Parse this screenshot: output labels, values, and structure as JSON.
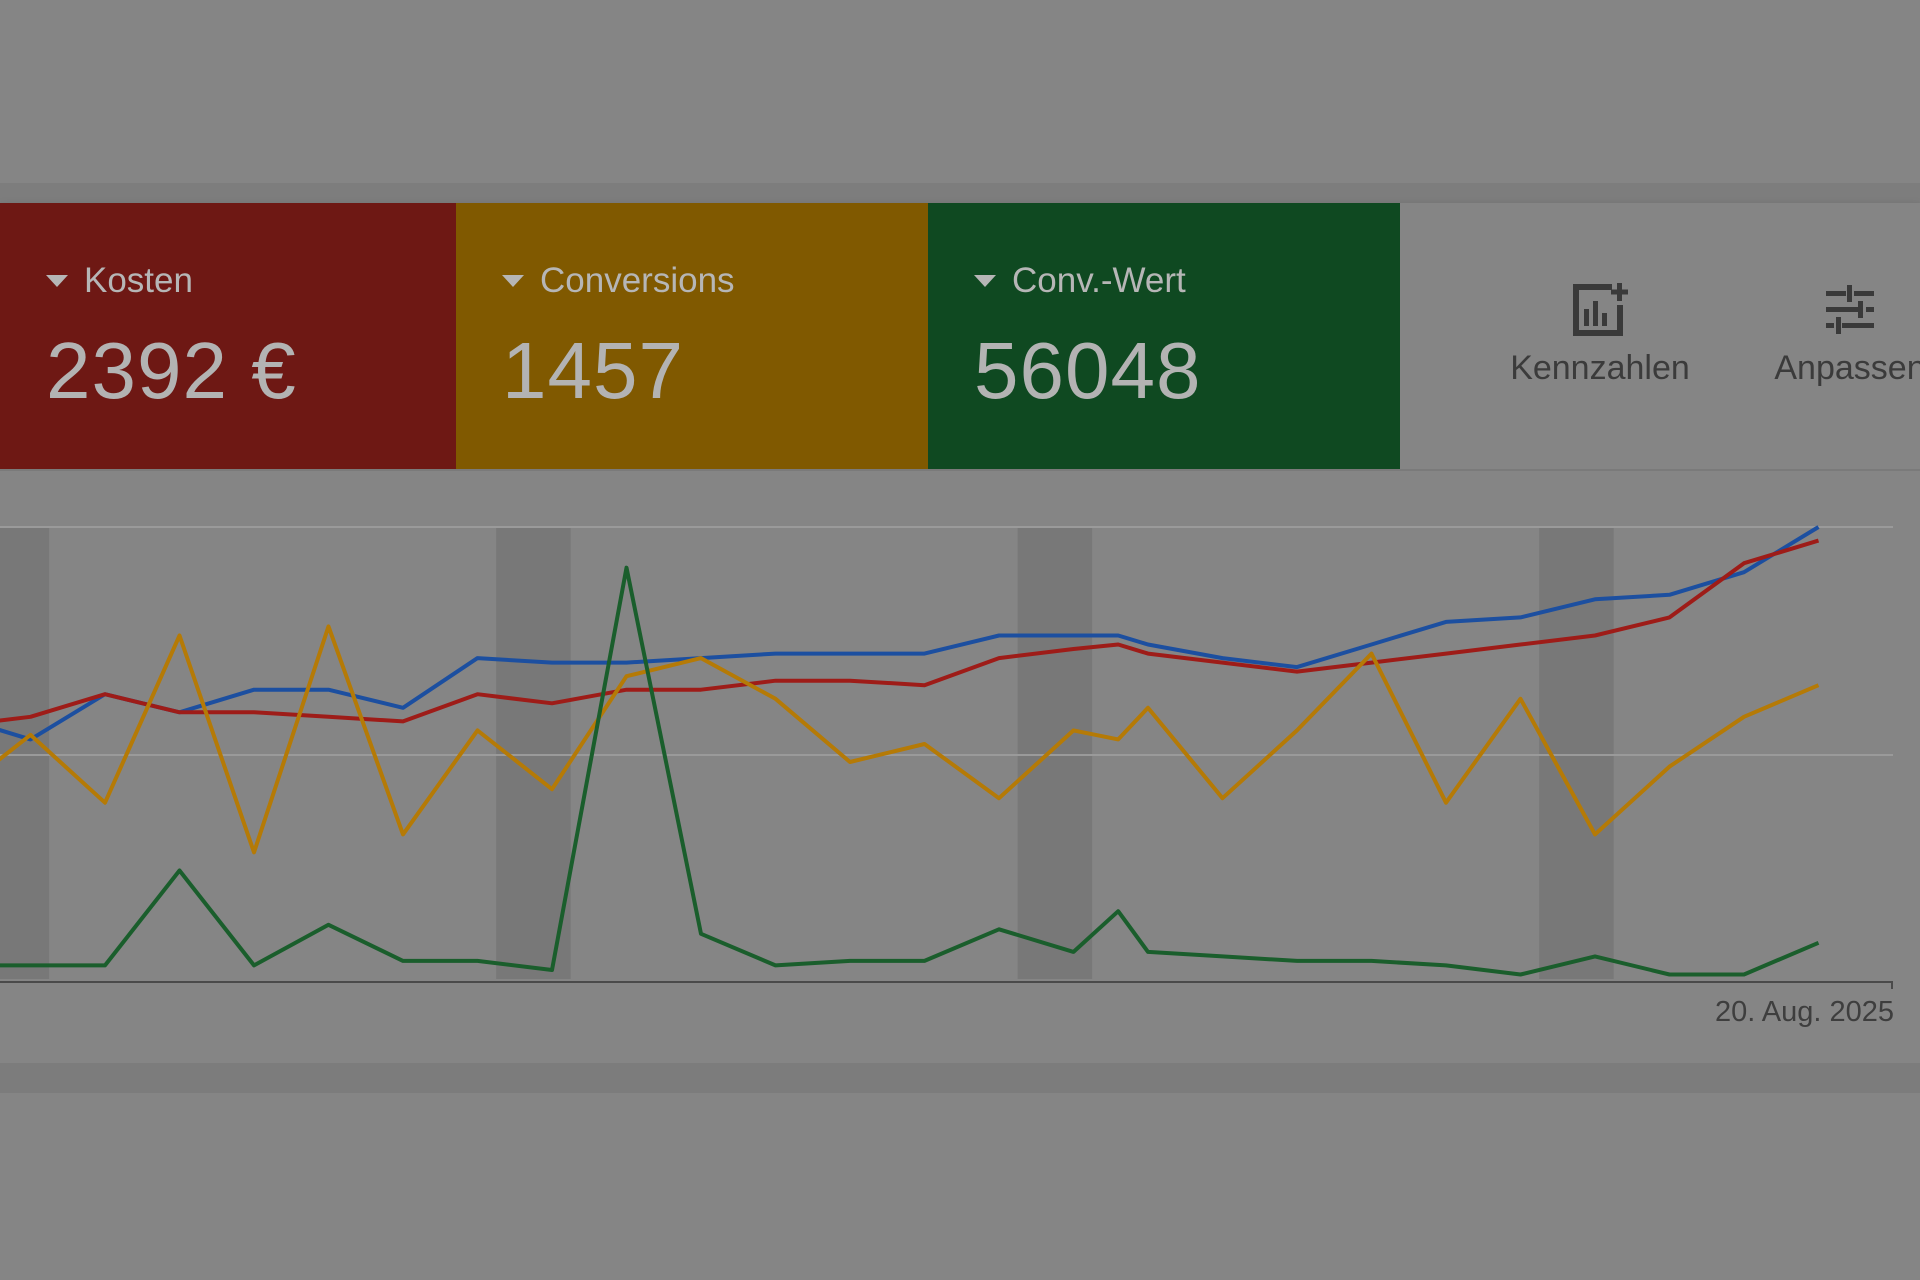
{
  "metrics": [
    {
      "label": "Kosten",
      "value": "2392 €",
      "color": "#6e1814",
      "line_color": "#9e1c18"
    },
    {
      "label": "Conversions",
      "value": "1457",
      "color": "#805900",
      "line_color": "#b57a06"
    },
    {
      "label": "Conv.-Wert",
      "value": "56048",
      "color": "#0f4921",
      "line_color": "#1a5e2c"
    }
  ],
  "toolbar": {
    "kennzahlen_label": "Kennzahlen",
    "anpassen_label": "Anpassen"
  },
  "chart": {
    "date_label": "20. Aug. 2025"
  },
  "chart_data": {
    "type": "line",
    "x_index": [
      0,
      1,
      2,
      3,
      4,
      5,
      6,
      7,
      8,
      9,
      10,
      11,
      12,
      13,
      14,
      15,
      15.6,
      16,
      17,
      18,
      19,
      20,
      21,
      22,
      23,
      24,
      25
    ],
    "series": [
      {
        "color": "#1c4fa0",
        "values": [
          0.58,
          0.53,
          0.63,
          0.59,
          0.64,
          0.64,
          0.6,
          0.71,
          0.7,
          0.7,
          0.71,
          0.72,
          0.72,
          0.72,
          0.76,
          0.76,
          0.76,
          0.74,
          0.71,
          0.69,
          0.74,
          0.79,
          0.8,
          0.84,
          0.85,
          0.9,
          1.0
        ]
      },
      {
        "color": "#9e1c18",
        "values": [
          0.56,
          0.58,
          0.63,
          0.59,
          0.59,
          0.58,
          0.57,
          0.63,
          0.61,
          0.64,
          0.64,
          0.66,
          0.66,
          0.65,
          0.71,
          0.73,
          0.74,
          0.72,
          0.7,
          0.68,
          0.7,
          0.72,
          0.74,
          0.76,
          0.8,
          0.92,
          0.97
        ]
      },
      {
        "color": "#b57a06",
        "values": [
          0.41,
          0.54,
          0.39,
          0.76,
          0.28,
          0.78,
          0.32,
          0.55,
          0.42,
          0.67,
          0.71,
          0.62,
          0.48,
          0.52,
          0.4,
          0.55,
          0.53,
          0.6,
          0.4,
          0.55,
          0.72,
          0.39,
          0.62,
          0.32,
          0.47,
          0.58,
          0.65
        ]
      },
      {
        "color": "#1a5e2c",
        "values": [
          0.03,
          0.03,
          0.03,
          0.24,
          0.03,
          0.12,
          0.04,
          0.04,
          0.02,
          0.91,
          0.1,
          0.03,
          0.04,
          0.04,
          0.11,
          0.06,
          0.15,
          0.06,
          0.05,
          0.04,
          0.04,
          0.03,
          0.01,
          0.05,
          0.01,
          0.01,
          0.08
        ]
      }
    ],
    "weekend_bands": [
      0.25,
      7.25,
      14.25,
      21.25
    ]
  }
}
